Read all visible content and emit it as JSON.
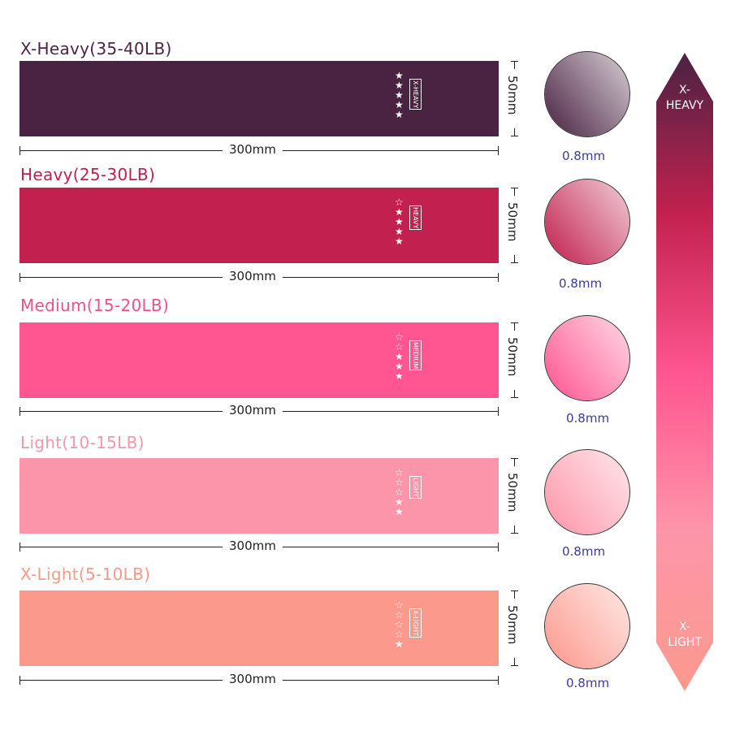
{
  "bands": [
    {
      "title": "X-Heavy(35-40LB)",
      "tag": "X-HEAVY",
      "stars_filled": 5,
      "stars_total": 5,
      "length": "300mm",
      "width": "50mm",
      "thickness": "0.8mm",
      "color": "#4a2343",
      "title_color": "#4a2545"
    },
    {
      "title": "Heavy(25-30LB)",
      "tag": "HEAVY",
      "stars_filled": 4,
      "stars_total": 5,
      "length": "300mm",
      "width": "50mm",
      "thickness": "0.8mm",
      "color": "#c2214f",
      "title_color": "#c0204e"
    },
    {
      "title": "Medium(15-20LB)",
      "tag": "MEDIUM",
      "stars_filled": 3,
      "stars_total": 5,
      "length": "300mm",
      "width": "50mm",
      "thickness": "0.8mm",
      "color": "#ff5590",
      "title_color": "#f0508a"
    },
    {
      "title": "Light(10-15LB)",
      "tag": "LIGHT",
      "stars_filled": 2,
      "stars_total": 5,
      "length": "300mm",
      "width": "50mm",
      "thickness": "0.8mm",
      "color": "#fd95aa",
      "title_color": "#f597a8"
    },
    {
      "title": "X-Light(5-10LB)",
      "tag": "X-LIGHT",
      "stars_filled": 1,
      "stars_total": 5,
      "length": "300mm",
      "width": "50mm",
      "thickness": "0.8mm",
      "color": "#fc998d",
      "title_color": "#f79a8a"
    }
  ],
  "scale": {
    "top_label": "X-\nHEAVY",
    "bottom_label": "X-\nLIGHT",
    "gradient": [
      "#4a2343",
      "#c2214f",
      "#ff5590",
      "#fd95aa",
      "#fc998d"
    ]
  }
}
